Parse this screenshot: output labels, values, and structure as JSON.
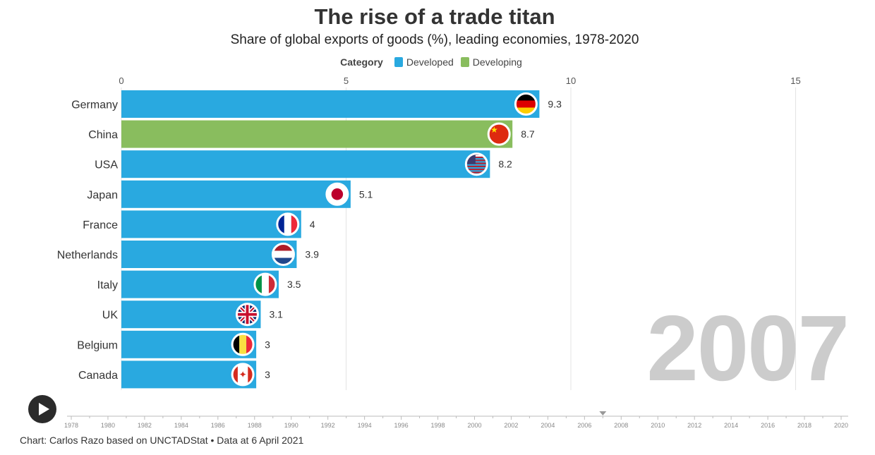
{
  "title": "The rise of a trade titan",
  "subtitle": "Share of global exports of goods (%), leading economies, 1978-2020",
  "legend": {
    "title": "Category",
    "items": [
      {
        "label": "Developed",
        "color": "#29a9e0"
      },
      {
        "label": "Developing",
        "color": "#89bd5e"
      }
    ]
  },
  "current_year": "2007",
  "footer": "Chart: Carlos Razo based on UNCTADStat • Data at 6 April 2021",
  "chart_data": {
    "type": "bar",
    "orientation": "horizontal",
    "xlim": [
      0,
      16.5
    ],
    "x_ticks": [
      0,
      5,
      10,
      15
    ],
    "grid": true,
    "categories": [
      "Germany",
      "China",
      "USA",
      "Japan",
      "France",
      "Netherlands",
      "Italy",
      "UK",
      "Belgium",
      "Canada"
    ],
    "values": [
      9.3,
      8.7,
      8.2,
      5.1,
      4,
      3.9,
      3.5,
      3.1,
      3,
      3
    ],
    "value_labels": [
      "9.3",
      "8.7",
      "8.2",
      "5.1",
      "4",
      "3.9",
      "3.5",
      "3.1",
      "3",
      "3"
    ],
    "bar_categories": [
      "Developed",
      "Developing",
      "Developed",
      "Developed",
      "Developed",
      "Developed",
      "Developed",
      "Developed",
      "Developed",
      "Developed"
    ],
    "flag_icons": [
      "germany-flag-icon",
      "china-flag-icon",
      "usa-flag-icon",
      "japan-flag-icon",
      "france-flag-icon",
      "netherlands-flag-icon",
      "italy-flag-icon",
      "uk-flag-icon",
      "belgium-flag-icon",
      "canada-flag-icon"
    ]
  },
  "timeline": {
    "labels": [
      "1978",
      "1980",
      "1982",
      "1984",
      "1986",
      "1988",
      "1990",
      "1992",
      "1994",
      "1996",
      "1998",
      "2000",
      "2002",
      "2004",
      "2006",
      "2008",
      "2010",
      "2012",
      "2014",
      "2016",
      "2018",
      "2020"
    ],
    "start": 1978,
    "end": 2020,
    "current": 2007
  },
  "controls": {
    "play_icon": "play-icon"
  }
}
